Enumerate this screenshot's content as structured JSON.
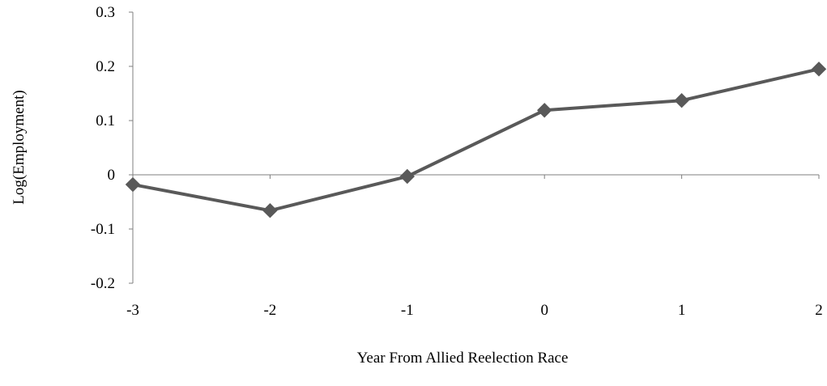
{
  "chart_data": {
    "type": "line",
    "title": "",
    "xlabel": "Year From Allied Reelection Race",
    "ylabel": "Log(Employment)",
    "x_tick_labels": [
      "-3",
      "-2",
      "-1",
      "0",
      "1",
      "2"
    ],
    "y_tick_labels": [
      "-0.2",
      "-0.1",
      "0",
      "0.1",
      "0.2",
      "0.3"
    ],
    "xlim": [
      -3,
      2
    ],
    "ylim": [
      -0.2,
      0.3
    ],
    "grid": false,
    "legend": "none",
    "series": [
      {
        "x": [
          -3,
          -2,
          -1,
          0,
          1,
          2
        ],
        "values": [
          -0.018,
          -0.066,
          -0.003,
          0.119,
          0.137,
          0.195
        ],
        "marker": "diamond",
        "color": "#595959"
      }
    ],
    "axis_color": "#7f7f7f"
  }
}
